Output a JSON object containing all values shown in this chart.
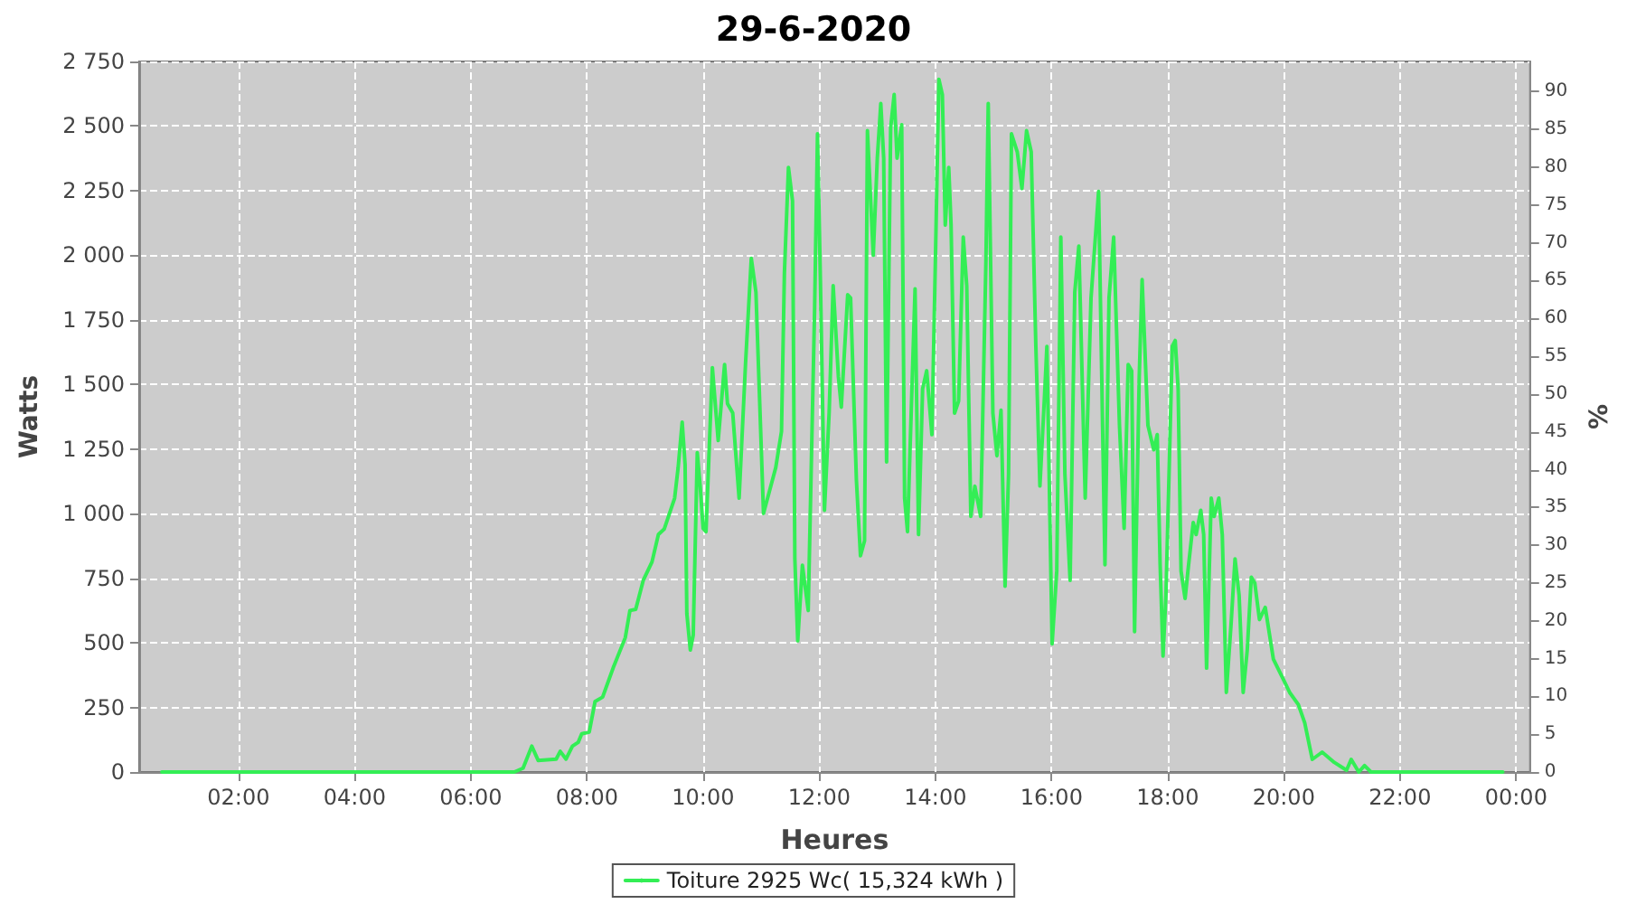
{
  "chart_data": {
    "type": "line",
    "title": "29-6-2020",
    "xlabel": "Heures",
    "ylabel": "Watts",
    "y2label": "%",
    "xlim": [
      0.29,
      24.24
    ],
    "xticks": [
      {
        "value": 2,
        "label": "02:00"
      },
      {
        "value": 4,
        "label": "04:00"
      },
      {
        "value": 6,
        "label": "06:00"
      },
      {
        "value": 8,
        "label": "08:00"
      },
      {
        "value": 10,
        "label": "10:00"
      },
      {
        "value": 12,
        "label": "12:00"
      },
      {
        "value": 14,
        "label": "14:00"
      },
      {
        "value": 16,
        "label": "16:00"
      },
      {
        "value": 18,
        "label": "18:00"
      },
      {
        "value": 20,
        "label": "20:00"
      },
      {
        "value": 22,
        "label": "22:00"
      },
      {
        "value": 24,
        "label": "00:00"
      }
    ],
    "ylim": [
      0,
      2750
    ],
    "yticks": [
      0,
      250,
      500,
      750,
      {
        "value": 1000,
        "label": "1 000"
      },
      {
        "value": 1250,
        "label": "1 250"
      },
      {
        "value": 1500,
        "label": "1 500"
      },
      {
        "value": 1750,
        "label": "1 750"
      },
      {
        "value": 2000,
        "label": "2 000"
      },
      {
        "value": 2250,
        "label": "2 250"
      },
      {
        "value": 2500,
        "label": "2 500"
      },
      {
        "value": 2750,
        "label": "2 750"
      }
    ],
    "y2lim": [
      0,
      94
    ],
    "y2ticks": [
      0,
      5,
      10,
      15,
      20,
      25,
      30,
      35,
      40,
      45,
      50,
      55,
      60,
      65,
      70,
      75,
      80,
      85,
      90
    ],
    "grid": true,
    "legend": "bottom",
    "marker": "none",
    "line_style": "solid",
    "series": [
      {
        "name": "Toiture 2925 Wc( 15,324 kWh )",
        "color": "#33ee55",
        "x": [
          0.68,
          3,
          5,
          6,
          6.75,
          6.9,
          7.05,
          7.16,
          7.47,
          7.54,
          7.64,
          7.75,
          7.85,
          7.91,
          8.04,
          8.14,
          8.27,
          8.45,
          8.66,
          8.74,
          8.84,
          8.97,
          9.12,
          9.23,
          9.33,
          9.51,
          9.57,
          9.64,
          9.69,
          9.72,
          9.78,
          9.83,
          9.9,
          9.95,
          10.0,
          10.05,
          10.16,
          10.26,
          10.37,
          10.42,
          10.51,
          10.62,
          10.73,
          10.83,
          10.91,
          11.04,
          11.25,
          11.35,
          11.4,
          11.47,
          11.54,
          11.58,
          11.63,
          11.71,
          11.81,
          11.92,
          11.97,
          12.02,
          12.09,
          12.17,
          12.24,
          12.33,
          12.38,
          12.49,
          12.54,
          12.64,
          12.71,
          12.78,
          12.83,
          12.93,
          13.0,
          13.06,
          13.11,
          13.16,
          13.23,
          13.29,
          13.34,
          13.42,
          13.47,
          13.52,
          13.57,
          13.65,
          13.71,
          13.78,
          13.85,
          13.94,
          14.01,
          14.06,
          14.12,
          14.17,
          14.23,
          14.27,
          14.33,
          14.4,
          14.48,
          14.54,
          14.61,
          14.68,
          14.78,
          14.87,
          14.91,
          14.99,
          15.06,
          15.13,
          15.2,
          15.26,
          15.31,
          15.41,
          15.49,
          15.57,
          15.65,
          15.73,
          15.8,
          15.88,
          15.92,
          16.01,
          16.09,
          16.16,
          16.23,
          16.32,
          16.4,
          16.47,
          16.58,
          16.68,
          16.77,
          16.81,
          16.92,
          16.99,
          17.07,
          17.17,
          17.25,
          17.32,
          17.38,
          17.43,
          17.51,
          17.56,
          17.66,
          17.76,
          17.82,
          17.87,
          17.92,
          17.97,
          18.08,
          18.13,
          18.18,
          18.23,
          18.3,
          18.36,
          18.44,
          18.49,
          18.57,
          18.62,
          18.67,
          18.75,
          18.8,
          18.88,
          18.94,
          19.01,
          19.09,
          19.16,
          19.23,
          19.3,
          19.37,
          19.44,
          19.5,
          19.58,
          19.68,
          19.82,
          20.0,
          20.1,
          20.25,
          20.36,
          20.49,
          20.66,
          20.87,
          21.08,
          21.16,
          21.29,
          21.39,
          21.5,
          22.5,
          23.77
        ],
        "values": [
          0,
          0,
          0,
          0,
          0,
          15,
          100,
          45,
          50,
          80,
          50,
          100,
          115,
          148,
          155,
          273,
          290,
          402,
          520,
          625,
          630,
          742,
          813,
          919,
          940,
          1060,
          1177,
          1354,
          1190,
          613,
          472,
          530,
          1236,
          1106,
          943,
          930,
          1565,
          1283,
          1577,
          1426,
          1390,
          1060,
          1577,
          1988,
          1857,
          1001,
          1177,
          1318,
          1930,
          2340,
          2210,
          825,
          508,
          800,
          625,
          1788,
          2470,
          1905,
          1013,
          1388,
          1882,
          1530,
          1412,
          1847,
          1835,
          1130,
          837,
          895,
          2482,
          2000,
          2376,
          2587,
          2376,
          1200,
          2494,
          2622,
          2376,
          2505,
          1060,
          930,
          1294,
          1870,
          919,
          1483,
          1553,
          1306,
          2093,
          2681,
          2622,
          2117,
          2340,
          2117,
          1389,
          1436,
          2070,
          1882,
          989,
          1106,
          989,
          1976,
          2587,
          1389,
          1224,
          1400,
          719,
          1153,
          2470,
          2400,
          2258,
          2482,
          2400,
          1647,
          1107,
          1459,
          1647,
          496,
          778,
          2070,
          1153,
          742,
          1857,
          2035,
          1060,
          1835,
          2117,
          2247,
          802,
          1835,
          2070,
          1341,
          943,
          1577,
          1553,
          543,
          1530,
          1906,
          1342,
          1247,
          1306,
          802,
          449,
          684,
          1648,
          1670,
          1483,
          778,
          672,
          802,
          966,
          919,
          1013,
          919,
          402,
          1060,
          989,
          1060,
          919,
          308,
          567,
          825,
          684,
          308,
          472,
          754,
          731,
          590,
          637,
          437,
          355,
          308,
          261,
          190,
          49,
          77,
          37,
          7,
          49,
          0,
          25,
          0,
          0,
          0
        ]
      }
    ]
  }
}
